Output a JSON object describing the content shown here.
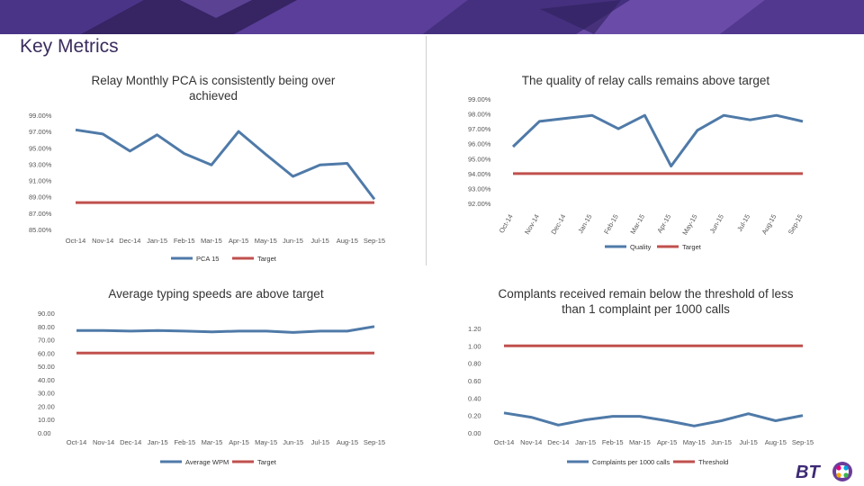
{
  "page": {
    "title": "Key Metrics",
    "brand": "BT"
  },
  "colors": {
    "series": "#4f7aa8",
    "target": "#c0504d",
    "title": "#3b2d5e",
    "banner": "#3d2a74"
  },
  "chart_data": [
    {
      "type": "line",
      "title": "Relay Monthly PCA is consistently being over achieved",
      "categories": [
        "Oct-14",
        "Nov-14",
        "Dec-14",
        "Jan-15",
        "Feb-15",
        "Mar-15",
        "Apr-15",
        "May-15",
        "Jun-15",
        "Jul-15",
        "Aug-15",
        "Sep-15"
      ],
      "y_ticks": [
        "85.00%",
        "87.00%",
        "89.00%",
        "91.00%",
        "93.00%",
        "95.00%",
        "97.00%",
        "99.00%"
      ],
      "ylim": [
        85,
        99
      ],
      "series": [
        {
          "name": "PCA 15",
          "values": [
            97.2,
            96.7,
            94.6,
            96.6,
            94.3,
            92.9,
            97.0,
            94.2,
            91.5,
            92.9,
            93.1,
            88.7
          ]
        },
        {
          "name": "Target",
          "values": [
            88.3,
            88.3,
            88.3,
            88.3,
            88.3,
            88.3,
            88.3,
            88.3,
            88.3,
            88.3,
            88.3,
            88.3
          ]
        }
      ],
      "legend": "bottom"
    },
    {
      "type": "line",
      "title": "The quality of relay calls remains above target",
      "categories": [
        "Oct-14",
        "Nov-14",
        "Dec-14",
        "Jan-15",
        "Feb-15",
        "Mar-15",
        "Apr-15",
        "May-15",
        "Jun-15",
        "Jul-15",
        "Aug-15",
        "Sep-15"
      ],
      "y_ticks": [
        "92.00%",
        "93.00%",
        "94.00%",
        "95.00%",
        "96.00%",
        "97.00%",
        "98.00%",
        "99.00%"
      ],
      "ylim": [
        92,
        99
      ],
      "series": [
        {
          "name": "Quality",
          "values": [
            95.8,
            97.5,
            97.7,
            97.9,
            97.0,
            97.9,
            94.5,
            96.9,
            97.9,
            97.6,
            97.9,
            97.5
          ]
        },
        {
          "name": "Target",
          "values": [
            94.0,
            94.0,
            94.0,
            94.0,
            94.0,
            94.0,
            94.0,
            94.0,
            94.0,
            94.0,
            94.0,
            94.0
          ]
        }
      ],
      "legend": "bottom"
    },
    {
      "type": "line",
      "title": "Average typing speeds are above target",
      "categories": [
        "Oct-14",
        "Nov-14",
        "Dec-14",
        "Jan-15",
        "Feb-15",
        "Mar-15",
        "Apr-15",
        "May-15",
        "Jun-15",
        "Jul-15",
        "Aug-15",
        "Sep-15"
      ],
      "y_ticks": [
        "0.00",
        "10.00",
        "20.00",
        "30.00",
        "40.00",
        "50.00",
        "60.00",
        "70.00",
        "80.00",
        "90.00"
      ],
      "ylim": [
        0,
        90
      ],
      "series": [
        {
          "name": "Average WPM",
          "values": [
            77.0,
            77.0,
            76.5,
            77.0,
            76.5,
            76.0,
            76.5,
            76.5,
            75.5,
            76.5,
            76.5,
            80.0
          ]
        },
        {
          "name": "Target",
          "values": [
            60,
            60,
            60,
            60,
            60,
            60,
            60,
            60,
            60,
            60,
            60,
            60
          ]
        }
      ],
      "legend": "bottom"
    },
    {
      "type": "line",
      "title": "Complants received remain below the threshold of less than 1 complaint per 1000 calls",
      "categories": [
        "Oct-14",
        "Nov-14",
        "Dec-14",
        "Jan-15",
        "Feb-15",
        "Mar-15",
        "Apr-15",
        "May-15",
        "Jun-15",
        "Jul-15",
        "Aug-15",
        "Sep-15"
      ],
      "y_ticks": [
        "0.00",
        "0.20",
        "0.40",
        "0.60",
        "0.80",
        "1.00",
        "1.20"
      ],
      "ylim": [
        0,
        1.2
      ],
      "series": [
        {
          "name": "Complaints per 1000 calls",
          "values": [
            0.23,
            0.18,
            0.09,
            0.15,
            0.19,
            0.19,
            0.14,
            0.08,
            0.14,
            0.22,
            0.14,
            0.2
          ]
        },
        {
          "name": "Threshold",
          "values": [
            1.0,
            1.0,
            1.0,
            1.0,
            1.0,
            1.0,
            1.0,
            1.0,
            1.0,
            1.0,
            1.0,
            1.0
          ]
        }
      ],
      "legend": "bottom"
    }
  ]
}
